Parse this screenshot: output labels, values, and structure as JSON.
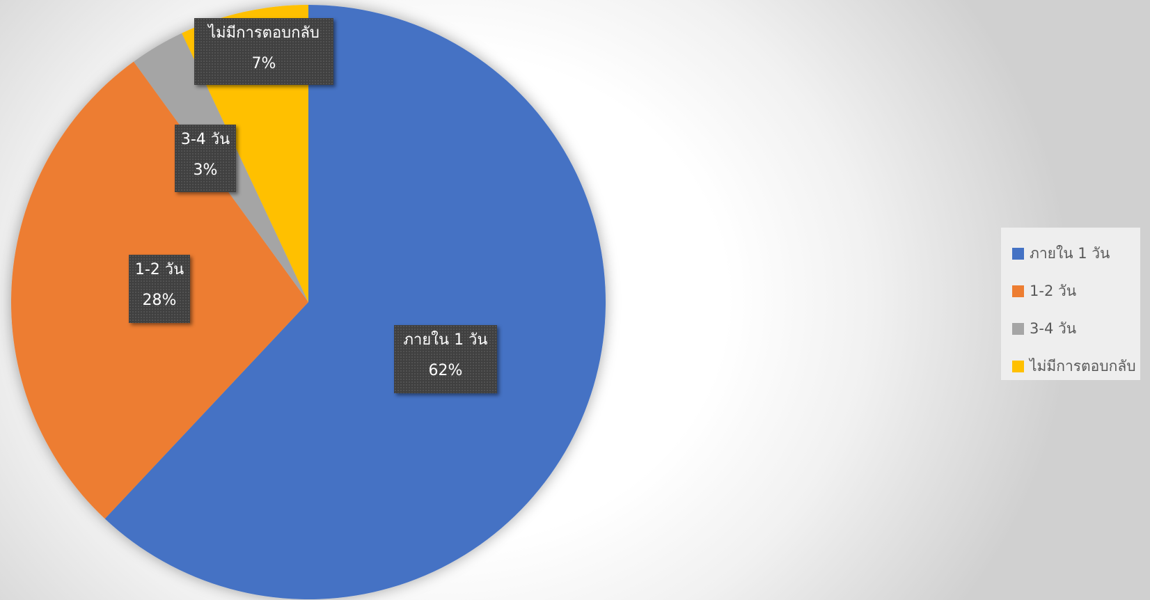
{
  "chart_data": {
    "type": "pie",
    "title": "",
    "categories": [
      "ภายใน 1 วัน",
      "1-2 วัน",
      "3-4 วัน",
      "ไม่มีการตอบกลับ"
    ],
    "values": [
      62,
      28,
      3,
      7
    ],
    "data_labels": [
      "62%",
      "28%",
      "3%",
      "7%"
    ],
    "colors": [
      "#4472C4",
      "#ED7D31",
      "#A5A5A5",
      "#FFC000"
    ],
    "start_angle": "12 o'clock",
    "direction": "clockwise",
    "legend": {
      "position": "right",
      "entries": [
        "ภายใน 1 วัน",
        "1-2 วัน",
        "3-4 วัน",
        "ไม่มีการตอบกลับ"
      ]
    }
  }
}
